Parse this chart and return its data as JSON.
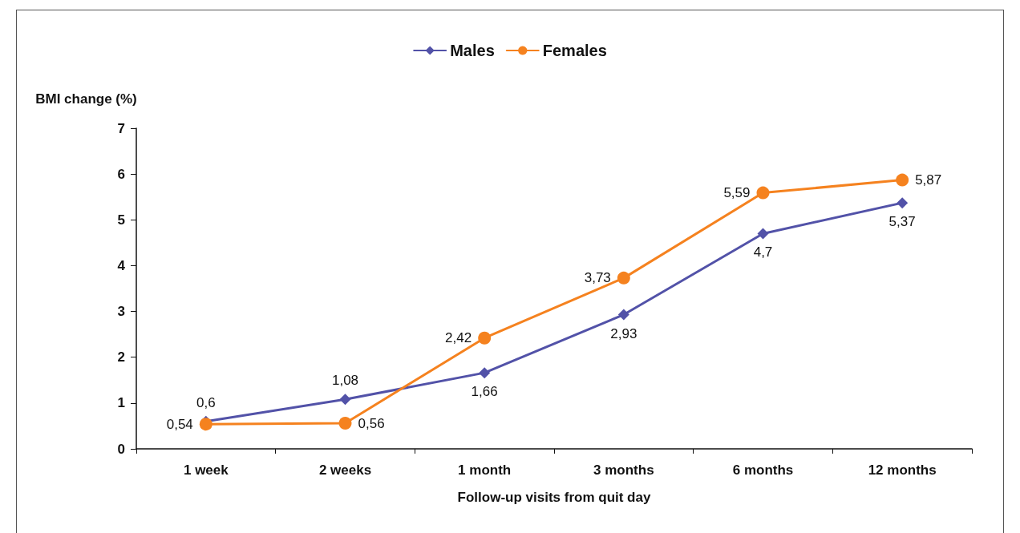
{
  "chart_data": {
    "type": "line",
    "ylabel": "BMI change (%)",
    "xlabel": "Follow-up visits from quit day",
    "categories": [
      "1 week",
      "2 weeks",
      "1 month",
      "3 months",
      "6 months",
      "12 months"
    ],
    "series": [
      {
        "name": "Males",
        "color": "#5252a8",
        "marker": "diamond",
        "values": [
          0.6,
          1.08,
          1.66,
          2.93,
          4.7,
          5.37
        ],
        "value_labels": [
          "0,6",
          "1,08",
          "1,66",
          "2,93",
          "4,7",
          "5,37"
        ]
      },
      {
        "name": "Females",
        "color": "#f5821f",
        "marker": "circle",
        "values": [
          0.54,
          0.56,
          2.42,
          3.73,
          5.59,
          5.87
        ],
        "value_labels": [
          "0,54",
          "0,56",
          "2,42",
          "3,73",
          "5,59",
          "5,87"
        ]
      }
    ],
    "ylim": [
      0,
      7
    ],
    "yticks": [
      0,
      1,
      2,
      3,
      4,
      5,
      6,
      7
    ],
    "grid": false,
    "legend": "top",
    "line_style": "solid"
  }
}
